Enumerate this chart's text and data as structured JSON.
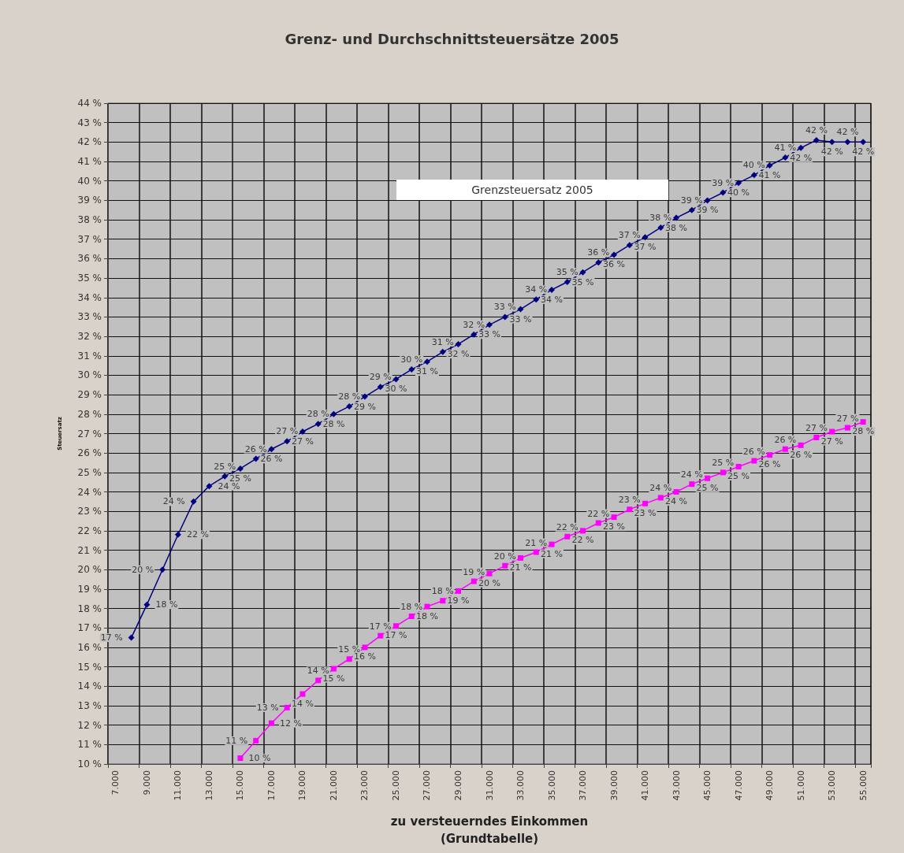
{
  "chart_data": {
    "type": "line",
    "title": "Grenz- und Durchschnittsteuersätze 2005",
    "xlabel": "zu versteuerndes Einkommen\n(Grundtabelle)",
    "ylabel": "Steuersatz",
    "annotations": [
      "Grenzsteuersatz 2005"
    ],
    "categories": [
      "7.000",
      null,
      "9.000",
      null,
      "11.000",
      null,
      "13.000",
      null,
      "15.000",
      null,
      "17.000",
      null,
      "19.000",
      null,
      "21.000",
      null,
      "23.000",
      null,
      "25.000",
      null,
      "27.000",
      null,
      "29.000",
      null,
      "31.000",
      null,
      "33.000",
      null,
      "35.000",
      null,
      "37.000",
      null,
      "39.000",
      null,
      "41.000",
      null,
      "43.000",
      null,
      "45.000",
      null,
      "47.000",
      null,
      "49.000",
      null,
      "51.000",
      null,
      "53.000",
      null,
      "55.000"
    ],
    "series": [
      {
        "color": "#000080",
        "marker": "diamond",
        "values": [
          null,
          16.5,
          18.2,
          20.0,
          21.8,
          23.5,
          24.3,
          24.8,
          25.2,
          25.7,
          26.2,
          26.6,
          27.1,
          27.5,
          28.0,
          28.4,
          28.9,
          29.4,
          29.8,
          30.3,
          30.7,
          31.2,
          31.6,
          32.1,
          32.6,
          33.0,
          33.4,
          33.9,
          34.4,
          34.8,
          35.3,
          35.8,
          36.2,
          36.7,
          37.1,
          37.6,
          38.1,
          38.5,
          39.0,
          39.4,
          39.9,
          40.3,
          40.8,
          41.2,
          41.7,
          42.1,
          42.0,
          42.0,
          42.0
        ],
        "value_labels": [
          null,
          "17 %",
          "18 %",
          "20 %",
          "22 %",
          "24 %",
          "24 %",
          "25 %",
          "25 %",
          "26 %",
          "26 %",
          "27 %",
          "27 %",
          "28 %",
          "28 %",
          "28 %",
          "29 %",
          "29 %",
          "30 %",
          "30 %",
          "31 %",
          "31 %",
          "32 %",
          "32 %",
          "33 %",
          "33 %",
          "33 %",
          "34 %",
          "34 %",
          "35 %",
          "35 %",
          "36 %",
          "36 %",
          "37 %",
          "37 %",
          "38 %",
          "38 %",
          "39 %",
          "39 %",
          "39 %",
          "40 %",
          "40 %",
          "41 %",
          "41 %",
          "42 %",
          "42 %",
          "42 %",
          "42 %",
          "42 %"
        ]
      },
      {
        "color": "#ff00ff",
        "marker": "square",
        "values": [
          null,
          null,
          null,
          null,
          null,
          null,
          null,
          null,
          10.3,
          11.2,
          12.1,
          12.9,
          13.6,
          14.3,
          14.9,
          15.4,
          16.0,
          16.6,
          17.1,
          17.6,
          18.1,
          18.4,
          18.9,
          19.4,
          19.8,
          20.2,
          20.6,
          20.9,
          21.3,
          21.7,
          22.0,
          22.4,
          22.7,
          23.1,
          23.4,
          23.7,
          24.0,
          24.4,
          24.7,
          25.0,
          25.3,
          25.6,
          25.9,
          26.2,
          26.4,
          26.8,
          27.1,
          27.3,
          27.6
        ],
        "value_labels": [
          null,
          null,
          null,
          null,
          null,
          null,
          null,
          null,
          "10 %",
          "11 %",
          "12 %",
          "13 %",
          "14 %",
          "14 %",
          "15 %",
          "15 %",
          "16 %",
          "17 %",
          "17 %",
          "18 %",
          "18 %",
          "18 %",
          "19 %",
          "19 %",
          "20 %",
          "20 %",
          "21 %",
          "21 %",
          "21 %",
          "22 %",
          "22 %",
          "22 %",
          "23 %",
          "23 %",
          "23 %",
          "24 %",
          "24 %",
          "24 %",
          "25 %",
          "25 %",
          "25 %",
          "26 %",
          "26 %",
          "26 %",
          "26 %",
          "27 %",
          "27 %",
          "27 %",
          "28 %"
        ]
      }
    ],
    "ylim": [
      10,
      44
    ],
    "yticks": [
      {
        "value": 10,
        "label": "10 %"
      },
      {
        "value": 11,
        "label": "11 %"
      },
      {
        "value": 12,
        "label": "12 %"
      },
      {
        "value": 13,
        "label": "13 %"
      },
      {
        "value": 14,
        "label": "14 %"
      },
      {
        "value": 15,
        "label": "15 %"
      },
      {
        "value": 16,
        "label": "16 %"
      },
      {
        "value": 17,
        "label": "17 %"
      },
      {
        "value": 18,
        "label": "18 %"
      },
      {
        "value": 19,
        "label": "19 %"
      },
      {
        "value": 20,
        "label": "20 %"
      },
      {
        "value": 21,
        "label": "21 %"
      },
      {
        "value": 22,
        "label": "22 %"
      },
      {
        "value": 23,
        "label": "23 %"
      },
      {
        "value": 24,
        "label": "24 %"
      },
      {
        "value": 25,
        "label": "25 %"
      },
      {
        "value": 26,
        "label": "26 %"
      },
      {
        "value": 27,
        "label": "27 %"
      },
      {
        "value": 28,
        "label": "28 %"
      },
      {
        "value": 29,
        "label": "29 %"
      },
      {
        "value": 30,
        "label": "30 %"
      },
      {
        "value": 31,
        "label": "31 %"
      },
      {
        "value": 32,
        "label": "32 %"
      },
      {
        "value": 33,
        "label": "33 %"
      },
      {
        "value": 34,
        "label": "34 %"
      },
      {
        "value": 35,
        "label": "35 %"
      },
      {
        "value": 36,
        "label": "36 %"
      },
      {
        "value": 37,
        "label": "37 %"
      },
      {
        "value": 38,
        "label": "38 %"
      },
      {
        "value": 39,
        "label": "39 %"
      },
      {
        "value": 40,
        "label": "40 %"
      },
      {
        "value": 41,
        "label": "41 %"
      },
      {
        "value": 42,
        "label": "42 %"
      },
      {
        "value": 43,
        "label": "43 %"
      },
      {
        "value": 44,
        "label": "44 %"
      }
    ],
    "grid": true
  }
}
